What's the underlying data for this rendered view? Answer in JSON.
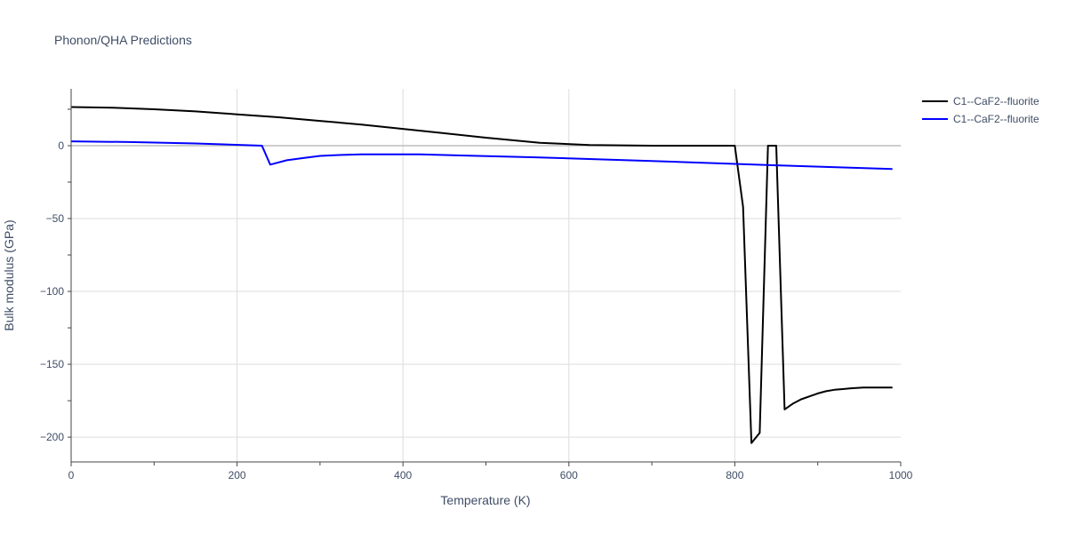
{
  "chart_data": {
    "type": "line",
    "title": "Phonon/QHA Predictions",
    "xlabel": "Temperature (K)",
    "ylabel": "Bulk modulus (GPa)",
    "xlim": [
      0,
      1000
    ],
    "ylim": [
      -217,
      39
    ],
    "xticks": [
      0,
      200,
      400,
      600,
      800,
      1000
    ],
    "xtick_labels": [
      "0",
      "200",
      "400",
      "600",
      "800",
      "1000"
    ],
    "yticks": [
      -200,
      -150,
      -100,
      -50,
      0
    ],
    "ytick_labels": [
      "−200",
      "−150",
      "−100",
      "−50",
      "0"
    ],
    "grid": true,
    "legend_position": "top-right",
    "series": [
      {
        "name": "C1--CaF2--fluorite",
        "color": "#000000",
        "x": [
          0,
          50,
          100,
          150,
          200,
          250,
          300,
          350,
          400,
          450,
          500,
          565,
          625,
          700,
          750,
          800,
          810,
          820,
          830,
          840,
          850,
          860,
          870,
          880,
          890,
          900,
          910,
          920,
          930,
          940,
          955,
          970,
          990
        ],
        "y": [
          26.5,
          26,
          25,
          23.5,
          21.5,
          19.5,
          17,
          14.5,
          11.5,
          8.5,
          5.5,
          2,
          0.5,
          0,
          0,
          0,
          -42,
          -204,
          -197,
          0,
          0,
          -181,
          -177,
          -174,
          -172,
          -170,
          -168.5,
          -167.5,
          -167,
          -166.5,
          -166,
          -166,
          -166
        ]
      },
      {
        "name": "C1--CaF2--fluorite",
        "color": "#0000ff",
        "x": [
          0,
          70,
          150,
          230,
          240,
          260,
          280,
          300,
          320,
          350,
          420,
          560,
          700,
          850,
          990
        ],
        "y": [
          3,
          2.5,
          1.5,
          0,
          -13,
          -10,
          -8.5,
          -7,
          -6.5,
          -6,
          -6,
          -8,
          -10.5,
          -13.5,
          -16
        ]
      }
    ]
  }
}
